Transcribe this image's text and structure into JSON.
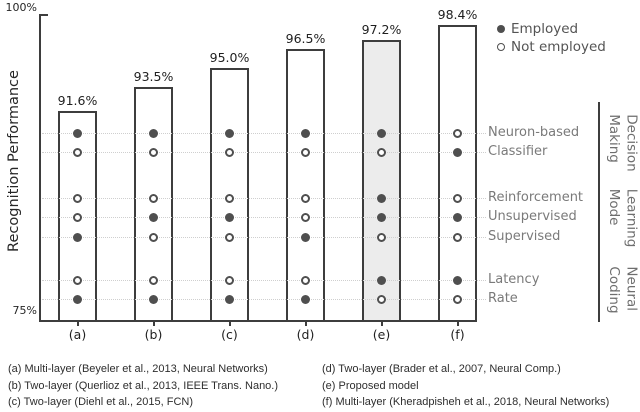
{
  "chart_data": {
    "type": "bar",
    "title": "",
    "xlabel": "",
    "ylabel": "Recognition Performance",
    "ylim": [
      75,
      100
    ],
    "yticks": [
      "100%",
      "75%"
    ],
    "legend": [
      {
        "marker": "filled-dot",
        "label": "Employed"
      },
      {
        "marker": "open-dot",
        "label": "Not employed"
      }
    ],
    "feature_rows": [
      "Neuron-based",
      "Classifier",
      "Reinforcement",
      "Unsupervised",
      "Supervised",
      "Latency",
      "Rate"
    ],
    "feature_groups": [
      {
        "label": "Decision\nMaking",
        "rows": [
          0,
          1
        ]
      },
      {
        "label": "Learning\nMode",
        "rows": [
          2,
          3,
          4
        ]
      },
      {
        "label": "Neural\nCoding",
        "rows": [
          5,
          6
        ]
      }
    ],
    "bars": [
      {
        "category": "(a)",
        "value": 91.6,
        "value_label": "91.6%",
        "highlighted": false,
        "employed": [
          true,
          false,
          false,
          false,
          true,
          false,
          true
        ]
      },
      {
        "category": "(b)",
        "value": 93.5,
        "value_label": "93.5%",
        "highlighted": false,
        "employed": [
          true,
          false,
          false,
          true,
          false,
          false,
          true
        ]
      },
      {
        "category": "(c)",
        "value": 95.0,
        "value_label": "95.0%",
        "highlighted": false,
        "employed": [
          true,
          false,
          false,
          true,
          false,
          false,
          true
        ]
      },
      {
        "category": "(d)",
        "value": 96.5,
        "value_label": "96.5%",
        "highlighted": false,
        "employed": [
          true,
          false,
          false,
          false,
          true,
          false,
          true
        ]
      },
      {
        "category": "(e)",
        "value": 97.2,
        "value_label": "97.2%",
        "highlighted": true,
        "employed": [
          true,
          false,
          true,
          true,
          false,
          true,
          false
        ]
      },
      {
        "category": "(f)",
        "value": 98.4,
        "value_label": "98.4%",
        "highlighted": false,
        "employed": [
          false,
          true,
          false,
          true,
          false,
          true,
          false
        ]
      }
    ],
    "colors": {
      "dot": "#4f4f4f",
      "axis": "#3d3d3d",
      "highlight_bar_fill": "#ececec",
      "row_label_gray": "#7a7a7a"
    }
  },
  "captions": {
    "left": [
      "(a) Multi-layer (Beyeler et al., 2013, Neural Networks)",
      "(b) Two-layer (Querlioz et al., 2013, IEEE Trans. Nano.)",
      "(c) Two-layer (Diehl et al., 2015, FCN)"
    ],
    "right": [
      "(d) Two-layer (Brader et al., 2007, Neural Comp.)",
      "(e) Proposed model",
      "(f) Multi-layer (Kheradpisheh et al., 2018, Neural Networks)"
    ]
  }
}
